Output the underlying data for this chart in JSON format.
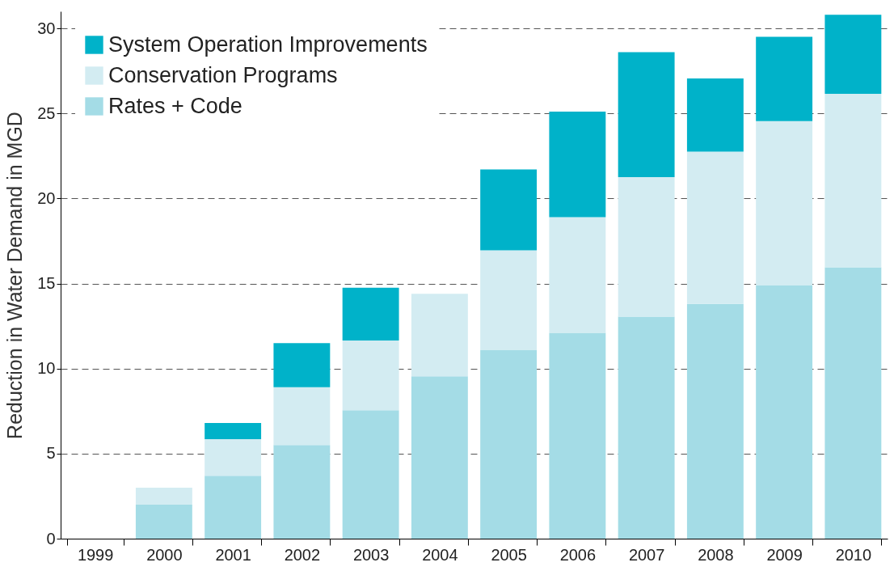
{
  "chart_data": {
    "type": "bar",
    "stacked": true,
    "ylabel": "Reduction in Water Demand in MGD",
    "categories": [
      "1999",
      "2000",
      "2001",
      "2002",
      "2003",
      "2004",
      "2005",
      "2006",
      "2007",
      "2008",
      "2009",
      "2010"
    ],
    "series": [
      {
        "name": "Rates + Code",
        "color": "#a4dce6",
        "values": [
          null,
          2.0,
          3.7,
          5.5,
          7.55,
          9.55,
          11.1,
          12.1,
          13.05,
          13.8,
          14.9,
          15.95
        ]
      },
      {
        "name": "Conservation Programs",
        "color": "#d3ecf2",
        "values": [
          null,
          1.0,
          2.15,
          3.4,
          4.1,
          4.85,
          5.85,
          6.8,
          8.2,
          8.95,
          9.65,
          10.2
        ]
      },
      {
        "name": "System Operation Improvements",
        "color": "#00b2c9",
        "values": [
          null,
          null,
          0.95,
          2.6,
          3.1,
          null,
          4.75,
          6.2,
          7.35,
          4.3,
          4.95,
          4.65
        ]
      }
    ],
    "ylim": [
      0,
      31
    ],
    "yticks": [
      0,
      5,
      10,
      15,
      20,
      25,
      30
    ],
    "grid": "y",
    "legend": "top left"
  }
}
